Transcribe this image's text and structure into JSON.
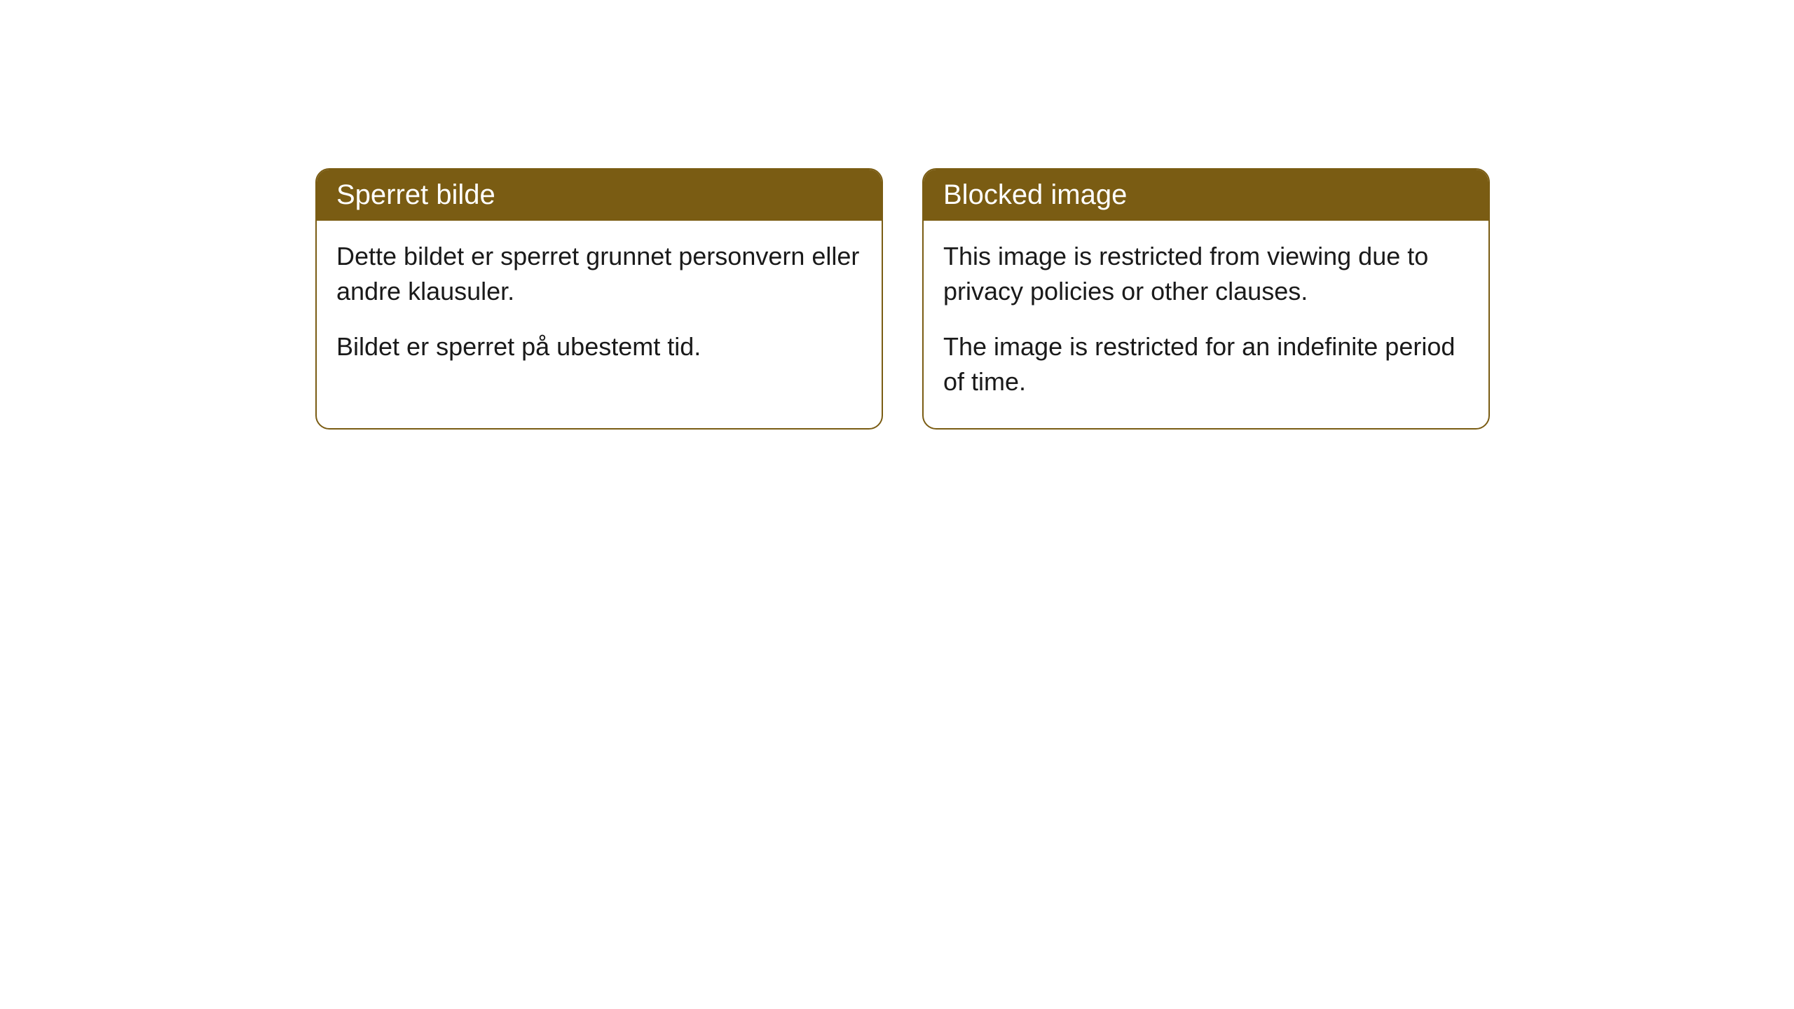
{
  "cards": [
    {
      "title": "Sperret bilde",
      "paragraph1": "Dette bildet er sperret grunnet personvern eller andre klausuler.",
      "paragraph2": "Bildet er sperret på ubestemt tid."
    },
    {
      "title": "Blocked image",
      "paragraph1": "This image is restricted from viewing due to privacy policies or other clauses.",
      "paragraph2": "The image is restricted for an indefinite period of time."
    }
  ],
  "style": {
    "header_bg": "#7a5c13",
    "header_text_color": "#ffffff",
    "border_color": "#7a5c13",
    "body_text_color": "#1a1a1a",
    "background_color": "#ffffff",
    "border_radius": 20,
    "title_fontsize": 40,
    "body_fontsize": 36
  }
}
